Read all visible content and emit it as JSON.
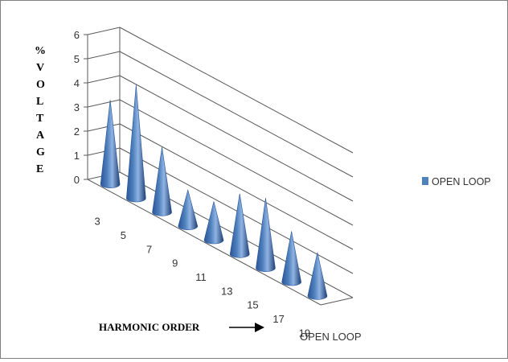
{
  "chart_data": {
    "type": "bar",
    "subtype": "3d-cone",
    "title": "",
    "xlabel": "HARMONIC ORDER",
    "ylabel": "% VOLTAGE",
    "ylabel_lines": [
      "%",
      "V",
      "O",
      "L",
      "T",
      "A",
      "G",
      "E"
    ],
    "depth_label": "OPEN LOOP",
    "categories": [
      "3",
      "5",
      "7",
      "9",
      "11",
      "13",
      "15",
      "17",
      "19"
    ],
    "series": [
      {
        "name": "OPEN LOOP",
        "values": [
          3.5,
          4.7,
          2.7,
          1.5,
          1.6,
          2.5,
          2.9,
          2.1,
          1.8
        ]
      }
    ],
    "yticks": [
      "0",
      "1",
      "2",
      "3",
      "4",
      "5",
      "6"
    ],
    "ylim": [
      0,
      6
    ],
    "grid": true,
    "legend": "right",
    "colors": {
      "series": "#4f81bd",
      "series_dark": "#1f3f73",
      "series_light": "#9dbde8",
      "grid": "#595959"
    }
  }
}
